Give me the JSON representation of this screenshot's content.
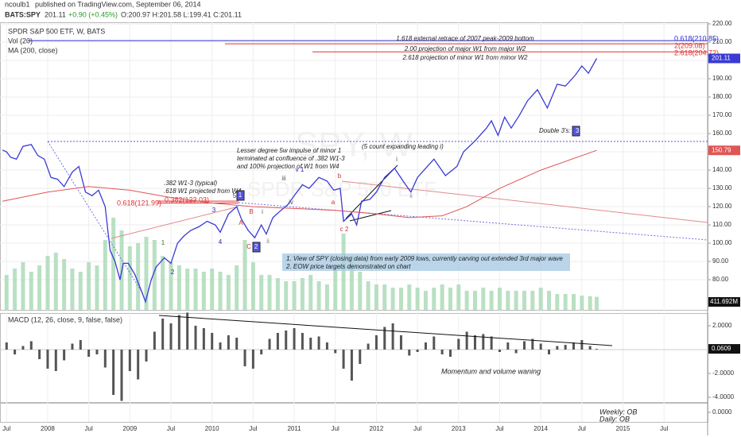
{
  "header": {
    "author": "ncoulb1",
    "published": "published on TradingView.com, September 06, 2014",
    "symbol": "BATS:SPY",
    "last": "201.11",
    "change": "+0.90 (+0.45%)",
    "ohlc": "O:200.97 H:201.58 L:199.41 C:201.11"
  },
  "watermark": [
    "SPY, W",
    "SPDR S&P 500 ETF"
  ],
  "chart_data": [
    {
      "type": "line",
      "title": "SPDR S&P 500 ETF, W, BATS",
      "subtitle": [
        "Vol (20)",
        "MA (200, close)"
      ],
      "xlim": [
        2007.42,
        2016.03
      ],
      "ylim": [
        63.5,
        220.9
      ],
      "grid": true,
      "xticks": [
        {
          "value": 2007.5,
          "label": "Jul"
        },
        {
          "value": 2008,
          "label": "2008"
        },
        {
          "value": 2008.5,
          "label": "Jul"
        },
        {
          "value": 2009,
          "label": "2009"
        },
        {
          "value": 2009.5,
          "label": "Jul"
        },
        {
          "value": 2010,
          "label": "2010"
        },
        {
          "value": 2010.5,
          "label": "Jul"
        },
        {
          "value": 2011,
          "label": "2011"
        },
        {
          "value": 2011.5,
          "label": "Jul"
        },
        {
          "value": 2012,
          "label": "2012"
        },
        {
          "value": 2012.5,
          "label": "Jul"
        },
        {
          "value": 2013,
          "label": "2013"
        },
        {
          "value": 2013.5,
          "label": "Jul"
        },
        {
          "value": 2014,
          "label": "2014"
        },
        {
          "value": 2014.5,
          "label": "Jul"
        },
        {
          "value": 2015,
          "label": "2015"
        },
        {
          "value": 2015.5,
          "label": "Jul"
        }
      ],
      "yticks": [
        {
          "value": 80,
          "label": "80.00"
        },
        {
          "value": 90,
          "label": "90.00"
        },
        {
          "value": 100,
          "label": "100.00"
        },
        {
          "value": 110,
          "label": "110.00"
        },
        {
          "value": 120,
          "label": "120.00"
        },
        {
          "value": 130,
          "label": "130.00"
        },
        {
          "value": 140,
          "label": "140.00"
        },
        {
          "value": 150,
          "label": "150.00"
        },
        {
          "value": 160,
          "label": "160.00"
        },
        {
          "value": 170,
          "label": "170.00"
        },
        {
          "value": 180,
          "label": "180.00"
        },
        {
          "value": 190,
          "label": "190.00"
        },
        {
          "value": 200,
          "label": "200.00"
        },
        {
          "value": 210,
          "label": "210.00"
        },
        {
          "value": 220,
          "label": "220.00"
        }
      ],
      "series": [
        {
          "name": "SPDR S&P 500 ETF, W, BATS",
          "color": "#3a3ad6",
          "x": [
            2007.45,
            2007.5,
            2007.55,
            2007.62,
            2007.7,
            2007.8,
            2007.88,
            2007.96,
            2008.04,
            2008.12,
            2008.2,
            2008.3,
            2008.38,
            2008.46,
            2008.54,
            2008.62,
            2008.7,
            2008.76,
            2008.82,
            2008.88,
            2008.92,
            2008.98,
            2009.06,
            2009.14,
            2009.19,
            2009.26,
            2009.32,
            2009.42,
            2009.5,
            2009.58,
            2009.66,
            2009.74,
            2009.84,
            2009.94,
            2010.04,
            2010.1,
            2010.2,
            2010.3,
            2010.36,
            2010.44,
            2010.52,
            2010.6,
            2010.66,
            2010.74,
            2010.84,
            2010.92,
            2011.0,
            2011.1,
            2011.18,
            2011.3,
            2011.4,
            2011.48,
            2011.56,
            2011.6,
            2011.7,
            2011.76,
            2011.82,
            2011.92,
            2012.0,
            2012.1,
            2012.22,
            2012.34,
            2012.42,
            2012.5,
            2012.6,
            2012.7,
            2012.84,
            2012.98,
            2013.06,
            2013.2,
            2013.34,
            2013.4,
            2013.48,
            2013.56,
            2013.64,
            2013.74,
            2013.84,
            2013.96,
            2014.08,
            2014.2,
            2014.3,
            2014.42,
            2014.5,
            2014.58,
            2014.68
          ],
          "values": [
            151,
            150,
            147,
            146,
            153,
            154,
            148,
            146,
            136,
            135,
            131,
            139,
            142,
            128,
            126,
            129,
            120,
            96,
            90,
            80,
            89,
            89,
            83,
            74,
            68,
            80,
            87,
            92,
            89,
            100,
            104,
            107,
            109,
            112,
            110,
            106,
            116,
            120,
            113,
            107,
            103,
            110,
            105,
            114,
            118,
            121,
            126,
            132,
            130,
            136,
            134,
            129,
            130,
            112,
            116,
            110,
            123,
            124,
            128,
            136,
            141,
            133,
            128,
            136,
            141,
            146,
            137,
            142,
            150,
            156,
            163,
            167,
            159,
            169,
            163,
            170,
            178,
            184,
            174,
            187,
            186,
            192,
            197,
            193,
            201.11
          ]
        },
        {
          "name": "MA (200, close)",
          "color": "#e05555",
          "x": [
            2007.45,
            2008,
            2008.5,
            2009,
            2009.5,
            2010,
            2010.5,
            2011,
            2011.5,
            2012,
            2012.4,
            2012.8,
            2013.1,
            2013.5,
            2014,
            2014.68
          ],
          "values": [
            123,
            128,
            131,
            129,
            125,
            122,
            120,
            119,
            118,
            116,
            114,
            115,
            120,
            130,
            140,
            150.79
          ]
        }
      ],
      "levels": [
        {
          "value": 210.85,
          "label": "0.618(210.85)",
          "color": "#2b2bd0"
        },
        {
          "value": 209.08,
          "label": "2(209.08)",
          "color": "#e03030"
        },
        {
          "value": 204.72,
          "label": "2.618(204.72)",
          "color": "#e03030"
        },
        {
          "value": 155.7,
          "color": "#5a5ae0"
        },
        {
          "value": 121.99,
          "label": "0.618(121.99)",
          "color": "#e03030"
        },
        {
          "value": 123.03,
          "label": "0.382(123.03)",
          "color": "#e03030"
        }
      ],
      "annotations": [
        {
          "text": "1.618 external retrace of 2007 peak-2009 bottom"
        },
        {
          "text": "2.00 projection of major W1 from major W2"
        },
        {
          "text": "2.618 projection of minor W1 from minor W2"
        },
        {
          "text": "Double 3's: 3"
        },
        {
          "text": "3",
          "boxed": true
        },
        {
          "text": "(5 count expanding leading i)"
        },
        {
          "text": "Lesser degree 5w impulse of minor 1"
        },
        {
          "text": "terminated at confluence of .382 W1-3"
        },
        {
          "text": "and 100% projection of W1 from W4"
        },
        {
          "text": ".382 W1-3 (typical)"
        },
        {
          "text": ".618 W1 projected from W4"
        },
        {
          "text": "1. View of SPY (closing data) from early 2009 lows, currently carving out extended 3rd major wave"
        },
        {
          "text": "2. EOW price targets demonstrated on chart"
        },
        {
          "text": "1",
          "color": "#2a7a2a"
        },
        {
          "text": "2",
          "color": "#2a2ab0"
        },
        {
          "text": "3",
          "color": "#2a2ab0"
        },
        {
          "text": "4",
          "color": "#2a2ab0"
        },
        {
          "text": "5",
          "color": "#2a2ab0"
        },
        {
          "text": "1",
          "boxed": true
        },
        {
          "text": "A",
          "color": "#d03030"
        },
        {
          "text": "B",
          "color": "#d03030"
        },
        {
          "text": "C",
          "color": "#d03030"
        },
        {
          "text": "2",
          "boxed": true
        },
        {
          "text": "i",
          "color": "#555"
        },
        {
          "text": "ii",
          "color": "#888"
        },
        {
          "text": "iii",
          "color": "#555"
        },
        {
          "text": "iv",
          "color": "#555"
        },
        {
          "text": "v 1",
          "color": "#2a2ab0"
        },
        {
          "text": "a",
          "color": "#d03030"
        },
        {
          "text": "b",
          "color": "#d03030"
        },
        {
          "text": "c 2",
          "color": "#d03030"
        },
        {
          "text": "i",
          "color": "#555"
        },
        {
          "text": "ii",
          "color": "#888"
        }
      ]
    },
    {
      "type": "bar",
      "title": "Vol (20)",
      "color": "#a8d8b4",
      "ylim": [
        0,
        3000
      ],
      "last_label": "411.692M",
      "x": [
        2007.5,
        2007.6,
        2007.7,
        2007.8,
        2007.9,
        2008.0,
        2008.1,
        2008.2,
        2008.3,
        2008.4,
        2008.5,
        2008.6,
        2008.7,
        2008.8,
        2008.9,
        2009.0,
        2009.1,
        2009.2,
        2009.3,
        2009.4,
        2009.5,
        2009.6,
        2009.7,
        2009.8,
        2009.9,
        2010.0,
        2010.1,
        2010.2,
        2010.3,
        2010.4,
        2010.5,
        2010.6,
        2010.7,
        2010.8,
        2010.9,
        2011.0,
        2011.1,
        2011.2,
        2011.3,
        2011.4,
        2011.5,
        2011.6,
        2011.7,
        2011.8,
        2011.9,
        2012.0,
        2012.1,
        2012.2,
        2012.3,
        2012.4,
        2012.5,
        2012.6,
        2012.7,
        2012.8,
        2012.9,
        2013.0,
        2013.1,
        2013.2,
        2013.3,
        2013.4,
        2013.5,
        2013.6,
        2013.7,
        2013.8,
        2013.9,
        2014.0,
        2014.1,
        2014.2,
        2014.3,
        2014.4,
        2014.5,
        2014.6,
        2014.68
      ],
      "values": [
        1100,
        1300,
        1500,
        1200,
        1400,
        1700,
        1800,
        1600,
        1300,
        1200,
        1500,
        1400,
        2200,
        2900,
        2500,
        2000,
        2100,
        2300,
        2200,
        1700,
        1500,
        1400,
        1300,
        1300,
        1200,
        1300,
        1200,
        1100,
        1400,
        2200,
        1500,
        1100,
        1100,
        1000,
        900,
        900,
        1000,
        1100,
        900,
        800,
        1400,
        2400,
        1700,
        1200,
        900,
        800,
        800,
        700,
        700,
        800,
        700,
        600,
        700,
        800,
        700,
        800,
        600,
        600,
        700,
        600,
        700,
        600,
        600,
        600,
        600,
        700,
        600,
        500,
        500,
        500,
        450,
        430,
        411.692
      ]
    },
    {
      "type": "bar",
      "title": "MACD (12, 26, close, 9, false, false)",
      "color": "#555",
      "ylim": [
        -4.33,
        2.93
      ],
      "yticks": [
        {
          "value": 2,
          "label": "2.0000"
        },
        {
          "value": -2,
          "label": "-2.0000"
        },
        {
          "value": -4,
          "label": "-4.0000"
        }
      ],
      "annotations": [
        {
          "text": "Momentum and volume waning"
        }
      ],
      "x": [
        2007.5,
        2007.6,
        2007.7,
        2007.8,
        2007.9,
        2008.0,
        2008.1,
        2008.2,
        2008.3,
        2008.4,
        2008.5,
        2008.6,
        2008.7,
        2008.8,
        2008.9,
        2009.0,
        2009.1,
        2009.2,
        2009.3,
        2009.4,
        2009.5,
        2009.6,
        2009.7,
        2009.8,
        2009.9,
        2010.0,
        2010.1,
        2010.2,
        2010.3,
        2010.4,
        2010.5,
        2010.6,
        2010.7,
        2010.8,
        2010.9,
        2011.0,
        2011.1,
        2011.2,
        2011.3,
        2011.4,
        2011.5,
        2011.6,
        2011.7,
        2011.8,
        2011.9,
        2012.0,
        2012.1,
        2012.2,
        2012.3,
        2012.4,
        2012.5,
        2012.6,
        2012.7,
        2012.8,
        2012.9,
        2013.0,
        2013.1,
        2013.2,
        2013.3,
        2013.4,
        2013.5,
        2013.6,
        2013.7,
        2013.8,
        2013.9,
        2014.0,
        2014.1,
        2014.2,
        2014.3,
        2014.4,
        2014.5,
        2014.6,
        2014.68
      ],
      "values": [
        0.6,
        -0.4,
        0.3,
        0.7,
        -0.8,
        -1.6,
        -1.8,
        -0.9,
        0.5,
        0.8,
        -0.6,
        -0.4,
        -1.5,
        -3.8,
        -4.3,
        -1.8,
        -2.5,
        -1.0,
        1.5,
        2.6,
        2.2,
        2.9,
        3.1,
        2.0,
        1.8,
        1.4,
        0.6,
        1.2,
        1.0,
        -1.4,
        -1.6,
        -0.4,
        0.9,
        1.4,
        1.6,
        1.8,
        1.4,
        1.0,
        1.1,
        0.6,
        -0.3,
        -1.6,
        -2.6,
        -1.2,
        0.5,
        1.2,
        1.9,
        2.2,
        1.2,
        -0.5,
        -0.2,
        0.6,
        1.1,
        -0.4,
        -0.6,
        0.9,
        1.5,
        1.2,
        1.3,
        1.1,
        -0.2,
        0.6,
        -0.3,
        0.7,
        0.9,
        0.5,
        -0.4,
        0.3,
        0.4,
        0.6,
        0.8,
        0.3,
        0.0609
      ]
    },
    {
      "type": "line",
      "ylim": [
        -1,
        1
      ],
      "yticks": [
        {
          "value": 0,
          "label": "0.0000"
        }
      ],
      "annotations": [
        {
          "text": "Weekly: OB"
        },
        {
          "text": "Daily: OB"
        }
      ]
    }
  ]
}
